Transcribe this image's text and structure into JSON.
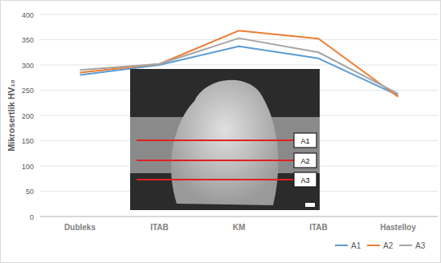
{
  "chart_data": {
    "type": "line",
    "y_label": "Mikrosertlik HV₁₀",
    "categories": [
      "Dubleks",
      "ITAB",
      "KM",
      "ITAB",
      "Hastelloy"
    ],
    "series": [
      {
        "name": "A1",
        "color": "#5b9bd5",
        "values": [
          280,
          300,
          337,
          313,
          240
        ]
      },
      {
        "name": "A2",
        "color": "#ed7d31",
        "values": [
          285,
          302,
          368,
          352,
          237
        ]
      },
      {
        "name": "A3",
        "color": "#a5a5a5",
        "values": [
          290,
          302,
          353,
          325,
          243
        ]
      }
    ],
    "annotations": [
      "A1",
      "A2",
      "A3"
    ],
    "ylim": [
      0,
      400
    ],
    "yticks": [
      0,
      50,
      100,
      150,
      200,
      250,
      300,
      350,
      400
    ],
    "grid": true,
    "legend": "bottom-right"
  }
}
